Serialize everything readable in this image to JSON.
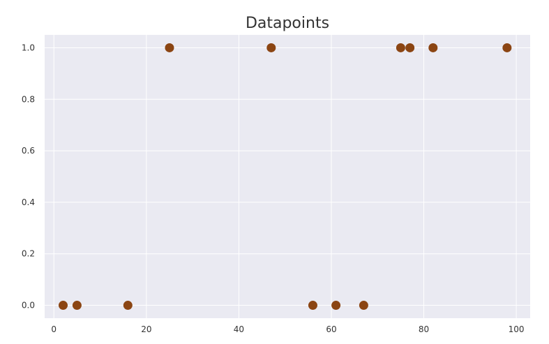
{
  "chart_data": {
    "type": "scatter",
    "title": "Datapoints",
    "xlabel": "",
    "ylabel": "",
    "xlim": [
      -2,
      103
    ],
    "ylim": [
      -0.05,
      1.05
    ],
    "xticks": [
      0,
      20,
      40,
      60,
      80,
      100
    ],
    "yticks": [
      0.0,
      0.2,
      0.4,
      0.6,
      0.8,
      1.0
    ],
    "xtick_labels": [
      "0",
      "20",
      "40",
      "60",
      "80",
      "100"
    ],
    "ytick_labels": [
      "0.0",
      "0.2",
      "0.4",
      "0.6",
      "0.8",
      "1.0"
    ],
    "grid": true,
    "series": [
      {
        "x": [
          2,
          5,
          16,
          25,
          47,
          56,
          61,
          67,
          75,
          77,
          82,
          98
        ],
        "y": [
          0,
          0,
          0,
          1,
          1,
          0,
          0,
          0,
          1,
          1,
          1,
          1
        ]
      }
    ],
    "colors": {
      "background": "#eaeaf2",
      "grid": "#ffffff",
      "marker": "#8b4513"
    }
  }
}
